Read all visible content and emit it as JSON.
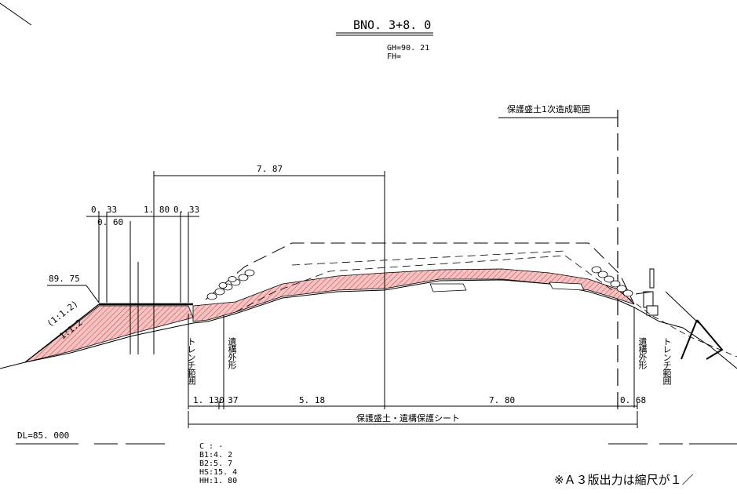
{
  "header": {
    "station": "BNO. 3+8. 0",
    "gh": "GH=90. 21",
    "fh": "FH="
  },
  "range_label": "保護盛土1次造成範囲",
  "dimensions": {
    "top_span": "7. 87",
    "d_033_a": "0. 33",
    "d_060": "0. 60",
    "d_180": "1. 80",
    "d_033_b": "0. 33",
    "elev_left": "89. 75",
    "slope_1": "(1:1.2)",
    "slope_2": "1:1.2",
    "b1": "1. 130",
    "b2": ". 37",
    "b3": "5. 18",
    "b4": "7. 80",
    "b5": "0. 68",
    "bottom_caption": "保護盛土・遺構保護シート"
  },
  "vertical_labels": {
    "trench_left": "トレンチ範囲",
    "feature_left": "遺構外形",
    "feature_right": "遺構外形",
    "trench_right": "トレンチ範囲"
  },
  "datum": "DL=85. 000",
  "params": [
    "C : -",
    "B1:4. 2",
    "B2:5. 7",
    "HS:15. 4",
    "HH:1. 80"
  ],
  "note": "※Ａ３版出力は縮尺が１／",
  "colors": {
    "fill": "#f4c2c2",
    "hatch": "#c2413e",
    "line": "#000000"
  }
}
